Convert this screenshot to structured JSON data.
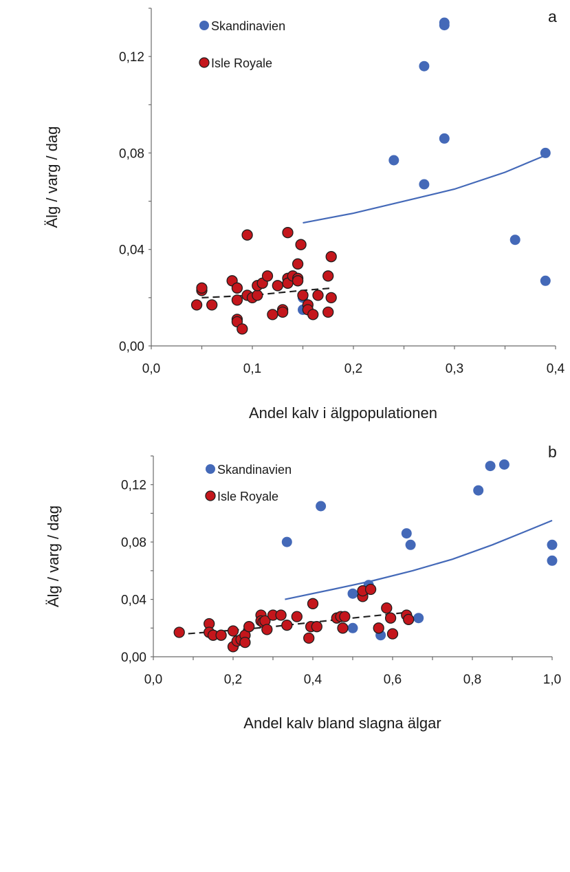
{
  "chart_data": [
    {
      "type": "scatter",
      "panel_label": "a",
      "xlabel": "Andel kalv i älgpopulationen",
      "ylabel": "Älg / varg / dag",
      "xlim": [
        0.0,
        0.4
      ],
      "ylim": [
        0.0,
        0.14
      ],
      "x_ticks": [
        {
          "value": 0.0,
          "label": "0,0"
        },
        {
          "value": 0.1,
          "label": "0,1"
        },
        {
          "value": 0.2,
          "label": "0,2"
        },
        {
          "value": 0.3,
          "label": "0,3"
        },
        {
          "value": 0.4,
          "label": "0,4"
        }
      ],
      "y_ticks": [
        {
          "value": 0.0,
          "label": "0,00"
        },
        {
          "value": 0.04,
          "label": "0,04"
        },
        {
          "value": 0.08,
          "label": "0,08"
        },
        {
          "value": 0.12,
          "label": "0,12"
        }
      ],
      "legend_position": "top-left",
      "grid": false,
      "series": [
        {
          "name": "Skandinavien",
          "color": "#4469b8",
          "points": [
            [
              0.29,
              0.134
            ],
            [
              0.29,
              0.133
            ],
            [
              0.27,
              0.116
            ],
            [
              0.29,
              0.086
            ],
            [
              0.24,
              0.077
            ],
            [
              0.39,
              0.08
            ],
            [
              0.27,
              0.067
            ],
            [
              0.36,
              0.044
            ],
            [
              0.39,
              0.027
            ],
            [
              0.15,
              0.02
            ],
            [
              0.15,
              0.015
            ]
          ],
          "trend": {
            "style": "solid",
            "x": [
              0.15,
              0.2,
              0.25,
              0.3,
              0.35,
              0.39
            ],
            "y": [
              0.051,
              0.055,
              0.06,
              0.065,
              0.072,
              0.079
            ]
          }
        },
        {
          "name": "Isle Royale",
          "color": "#c4161c",
          "points": [
            [
              0.045,
              0.017
            ],
            [
              0.05,
              0.023
            ],
            [
              0.05,
              0.024
            ],
            [
              0.06,
              0.017
            ],
            [
              0.08,
              0.027
            ],
            [
              0.085,
              0.024
            ],
            [
              0.085,
              0.019
            ],
            [
              0.085,
              0.011
            ],
            [
              0.085,
              0.01
            ],
            [
              0.09,
              0.007
            ],
            [
              0.095,
              0.046
            ],
            [
              0.095,
              0.021
            ],
            [
              0.1,
              0.02
            ],
            [
              0.105,
              0.021
            ],
            [
              0.105,
              0.025
            ],
            [
              0.11,
              0.026
            ],
            [
              0.115,
              0.029
            ],
            [
              0.12,
              0.013
            ],
            [
              0.125,
              0.025
            ],
            [
              0.13,
              0.015
            ],
            [
              0.13,
              0.014
            ],
            [
              0.135,
              0.047
            ],
            [
              0.135,
              0.028
            ],
            [
              0.135,
              0.026
            ],
            [
              0.14,
              0.029
            ],
            [
              0.145,
              0.034
            ],
            [
              0.145,
              0.028
            ],
            [
              0.145,
              0.027
            ],
            [
              0.148,
              0.042
            ],
            [
              0.15,
              0.021
            ],
            [
              0.155,
              0.017
            ],
            [
              0.155,
              0.015
            ],
            [
              0.16,
              0.013
            ],
            [
              0.165,
              0.021
            ],
            [
              0.175,
              0.029
            ],
            [
              0.175,
              0.014
            ],
            [
              0.178,
              0.037
            ],
            [
              0.178,
              0.02
            ]
          ],
          "trend": {
            "style": "dashed",
            "x": [
              0.05,
              0.1,
              0.15,
              0.18
            ],
            "y": [
              0.02,
              0.021,
              0.023,
              0.024
            ]
          }
        }
      ]
    },
    {
      "type": "scatter",
      "panel_label": "b",
      "xlabel": "Andel kalv bland slagna älgar",
      "ylabel": "Älg / varg / dag",
      "xlim": [
        0.0,
        1.0
      ],
      "ylim": [
        0.0,
        0.14
      ],
      "x_ticks": [
        {
          "value": 0.0,
          "label": "0,0"
        },
        {
          "value": 0.2,
          "label": "0,2"
        },
        {
          "value": 0.4,
          "label": "0,4"
        },
        {
          "value": 0.6,
          "label": "0,6"
        },
        {
          "value": 0.8,
          "label": "0,8"
        },
        {
          "value": 1.0,
          "label": "1,0"
        }
      ],
      "y_ticks": [
        {
          "value": 0.0,
          "label": "0,00"
        },
        {
          "value": 0.04,
          "label": "0,04"
        },
        {
          "value": 0.08,
          "label": "0,08"
        },
        {
          "value": 0.12,
          "label": "0,12"
        }
      ],
      "legend_position": "top-left",
      "grid": false,
      "series": [
        {
          "name": "Skandinavien",
          "color": "#4469b8",
          "points": [
            [
              0.845,
              0.133
            ],
            [
              0.88,
              0.134
            ],
            [
              0.815,
              0.116
            ],
            [
              0.42,
              0.105
            ],
            [
              0.335,
              0.08
            ],
            [
              0.635,
              0.086
            ],
            [
              0.645,
              0.078
            ],
            [
              1.0,
              0.078
            ],
            [
              1.0,
              0.067
            ],
            [
              0.54,
              0.05
            ],
            [
              0.5,
              0.044
            ],
            [
              0.665,
              0.027
            ],
            [
              0.5,
              0.02
            ],
            [
              0.57,
              0.015
            ]
          ],
          "trend": {
            "style": "solid",
            "x": [
              0.33,
              0.45,
              0.55,
              0.65,
              0.75,
              0.85,
              0.93,
              1.0
            ],
            "y": [
              0.04,
              0.047,
              0.053,
              0.06,
              0.068,
              0.078,
              0.087,
              0.095
            ]
          }
        },
        {
          "name": "Isle Royale",
          "color": "#c4161c",
          "points": [
            [
              0.065,
              0.017
            ],
            [
              0.14,
              0.023
            ],
            [
              0.14,
              0.017
            ],
            [
              0.15,
              0.015
            ],
            [
              0.17,
              0.015
            ],
            [
              0.2,
              0.018
            ],
            [
              0.2,
              0.007
            ],
            [
              0.21,
              0.011
            ],
            [
              0.22,
              0.012
            ],
            [
              0.23,
              0.015
            ],
            [
              0.23,
              0.01
            ],
            [
              0.24,
              0.021
            ],
            [
              0.27,
              0.029
            ],
            [
              0.27,
              0.025
            ],
            [
              0.275,
              0.024
            ],
            [
              0.28,
              0.025
            ],
            [
              0.285,
              0.019
            ],
            [
              0.3,
              0.029
            ],
            [
              0.32,
              0.029
            ],
            [
              0.335,
              0.022
            ],
            [
              0.36,
              0.028
            ],
            [
              0.39,
              0.013
            ],
            [
              0.395,
              0.021
            ],
            [
              0.4,
              0.037
            ],
            [
              0.41,
              0.021
            ],
            [
              0.46,
              0.027
            ],
            [
              0.47,
              0.028
            ],
            [
              0.475,
              0.02
            ],
            [
              0.48,
              0.028
            ],
            [
              0.525,
              0.042
            ],
            [
              0.525,
              0.046
            ],
            [
              0.545,
              0.047
            ],
            [
              0.565,
              0.02
            ],
            [
              0.585,
              0.034
            ],
            [
              0.595,
              0.027
            ],
            [
              0.6,
              0.016
            ],
            [
              0.635,
              0.029
            ],
            [
              0.64,
              0.026
            ]
          ],
          "trend": {
            "style": "dashed",
            "x": [
              0.06,
              0.2,
              0.3,
              0.4,
              0.5,
              0.64
            ],
            "y": [
              0.0155,
              0.0185,
              0.021,
              0.024,
              0.027,
              0.031
            ]
          }
        }
      ]
    }
  ]
}
